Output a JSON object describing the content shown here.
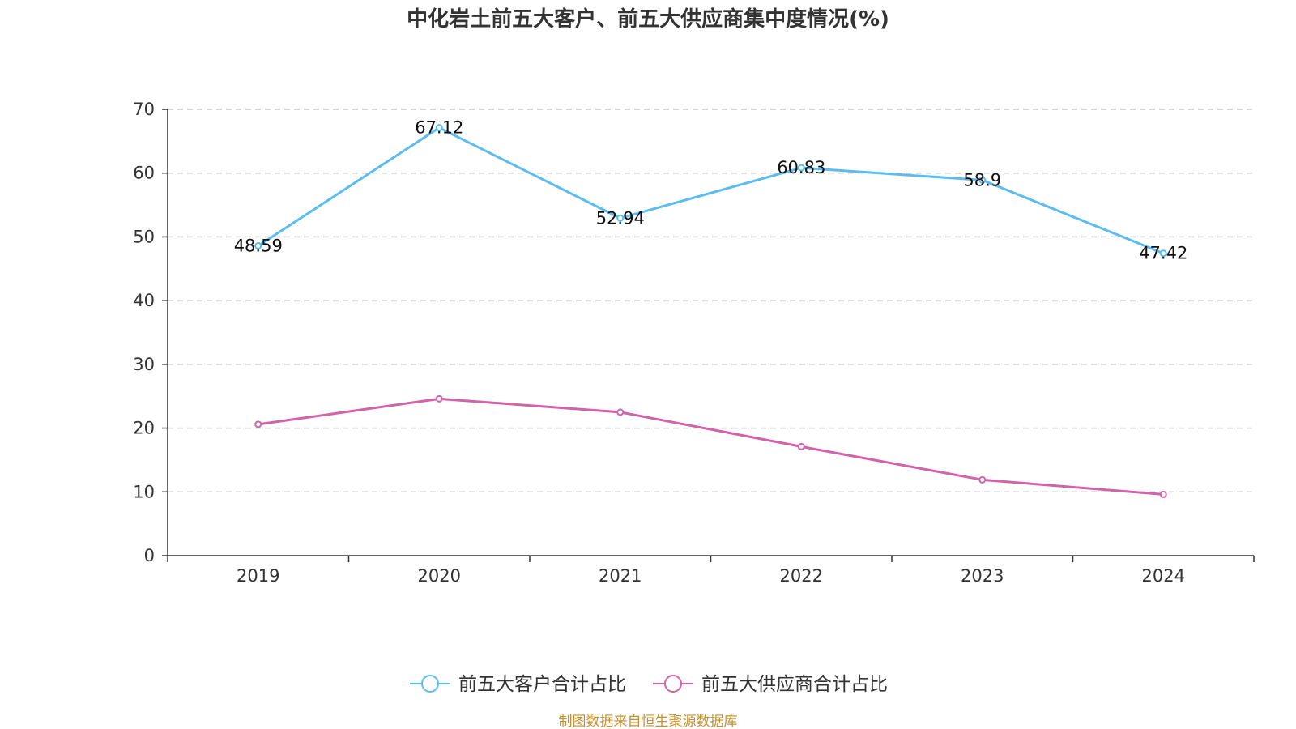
{
  "chart_data": {
    "type": "line",
    "title": "中化岩土前五大客户、前五大供应商集中度情况(%)",
    "categories": [
      "2019",
      "2020",
      "2021",
      "2022",
      "2023",
      "2024"
    ],
    "ylim": [
      0,
      70
    ],
    "yticks": [
      0,
      10,
      20,
      30,
      40,
      50,
      60,
      70
    ],
    "grid": true,
    "xlabel": "",
    "ylabel": "",
    "legend_position": "bottom-center",
    "series": [
      {
        "name": "前五大客户合计占比",
        "color": "#5bbcf0",
        "values": [
          48.59,
          67.12,
          52.94,
          60.83,
          58.9,
          47.42
        ],
        "labels": [
          "48.59",
          "67.12",
          "52.94",
          "60.83",
          "58.9",
          "47.42"
        ],
        "show_labels": true
      },
      {
        "name": "前五大供应商合计占比",
        "color": "#d262a9",
        "values": [
          20.6,
          24.6,
          22.5,
          17.1,
          11.9,
          9.6
        ],
        "show_labels": false
      }
    ]
  },
  "source": {
    "text": "制图数据来自恒生聚源数据库",
    "color": "#c8902a"
  }
}
